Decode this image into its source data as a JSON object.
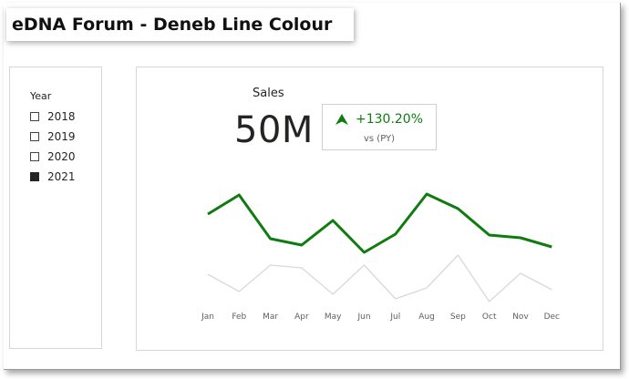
{
  "title": "eDNA Forum - Deneb Line Colour",
  "slicer": {
    "header": "Year",
    "items": [
      {
        "label": "2018",
        "checked": false
      },
      {
        "label": "2019",
        "checked": false
      },
      {
        "label": "2020",
        "checked": false
      },
      {
        "label": "2021",
        "checked": true
      }
    ]
  },
  "kpi": {
    "label": "Sales",
    "value": "50M",
    "change": "+130.20%",
    "comparison": "vs (PY)",
    "icon": "arrow-up-icon"
  },
  "colors": {
    "current_line": "#107c10",
    "prior_line": "#d9d9d9",
    "positive": "#107c10"
  },
  "chart_data": {
    "type": "line",
    "categories": [
      "Jan",
      "Feb",
      "Mar",
      "Apr",
      "May",
      "Jun",
      "Jul",
      "Aug",
      "Sep",
      "Oct",
      "Nov",
      "Dec"
    ],
    "series": [
      {
        "values": [
          232,
          211,
          259,
          266,
          239,
          274,
          254,
          210,
          226,
          255,
          258,
          268
        ]
      },
      {
        "values": [
          298,
          317,
          288,
          291,
          320,
          288,
          325,
          313,
          277,
          328,
          297,
          315
        ]
      }
    ],
    "ylim": [
      330,
      200
    ]
  }
}
